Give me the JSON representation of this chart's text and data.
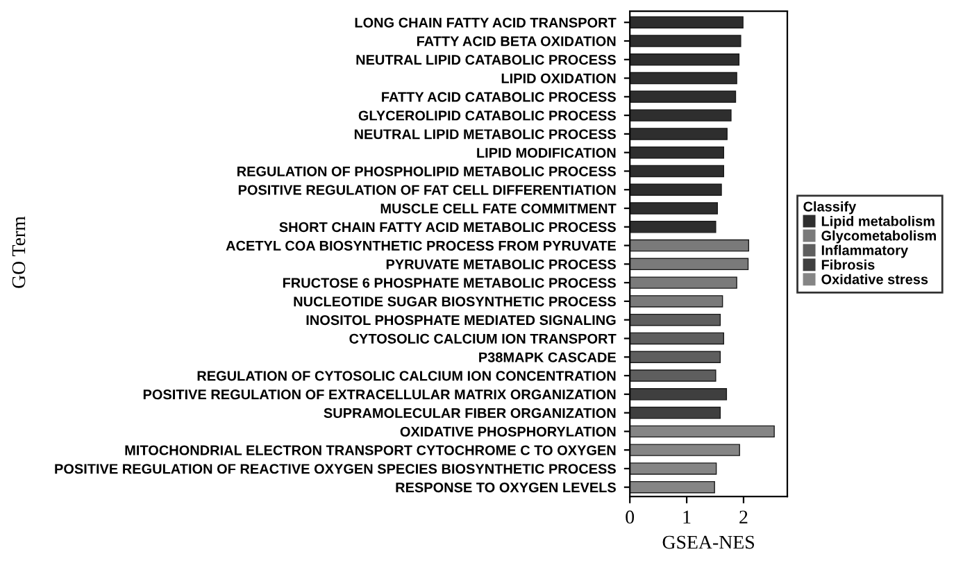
{
  "chart_data": {
    "type": "bar",
    "orientation": "horizontal",
    "xlabel": "GSEA-NES",
    "ylabel": "GO Term",
    "legend_title": "Classify",
    "legend": "right",
    "grid": false,
    "categories": [
      "LONG CHAIN FATTY ACID TRANSPORT",
      "FATTY ACID BETA OXIDATION",
      "NEUTRAL LIPID CATABOLIC PROCESS",
      "LIPID OXIDATION",
      "FATTY ACID CATABOLIC PROCESS",
      "GLYCEROLIPID CATABOLIC PROCESS",
      "NEUTRAL LIPID METABOLIC PROCESS",
      "LIPID MODIFICATION",
      "REGULATION OF PHOSPHOLIPID METABOLIC PROCESS",
      "POSITIVE REGULATION OF FAT CELL DIFFERENTIATION",
      "MUSCLE CELL FATE COMMITMENT",
      "SHORT CHAIN FATTY ACID METABOLIC PROCESS",
      "ACETYL COA BIOSYNTHETIC PROCESS FROM PYRUVATE",
      "PYRUVATE METABOLIC PROCESS",
      "FRUCTOSE 6 PHOSPHATE METABOLIC PROCESS",
      "NUCLEOTIDE SUGAR BIOSYNTHETIC PROCESS",
      "INOSITOL PHOSPHATE MEDIATED SIGNALING",
      "CYTOSOLIC CALCIUM ION TRANSPORT",
      "P38MAPK CASCADE",
      "REGULATION OF CYTOSOLIC CALCIUM ION CONCENTRATION",
      "POSITIVE REGULATION OF EXTRACELLULAR MATRIX ORGANIZATION",
      "SUPRAMOLECULAR FIBER ORGANIZATION",
      "OXIDATIVE PHOSPHORYLATION",
      "MITOCHONDRIAL ELECTRON TRANSPORT CYTOCHROME C TO OXYGEN",
      "POSITIVE REGULATION OF REACTIVE OXYGEN SPECIES BIOSYNTHETIC PROCESS",
      "RESPONSE TO OXYGEN LEVELS"
    ],
    "series": [
      {
        "name": "Lipid metabolism",
        "color": "#2e2e2e",
        "values": [
          1.99,
          1.95,
          1.92,
          1.88,
          1.86,
          1.78,
          1.71,
          1.65,
          1.65,
          1.61,
          1.54,
          1.51,
          null,
          null,
          null,
          null,
          null,
          null,
          null,
          null,
          null,
          null,
          null,
          null,
          null,
          null
        ]
      },
      {
        "name": "Glycometabolism",
        "color": "#7a7a7a",
        "values": [
          null,
          null,
          null,
          null,
          null,
          null,
          null,
          null,
          null,
          null,
          null,
          null,
          2.09,
          2.08,
          1.88,
          1.63,
          null,
          null,
          null,
          null,
          null,
          null,
          null,
          null,
          null,
          null
        ]
      },
      {
        "name": "Inflammatory",
        "color": "#5e5e5e",
        "values": [
          null,
          null,
          null,
          null,
          null,
          null,
          null,
          null,
          null,
          null,
          null,
          null,
          null,
          null,
          null,
          null,
          1.59,
          1.65,
          1.59,
          1.51,
          null,
          null,
          null,
          null,
          null,
          null
        ]
      },
      {
        "name": "Fibrosis",
        "color": "#3f3f3f",
        "values": [
          null,
          null,
          null,
          null,
          null,
          null,
          null,
          null,
          null,
          null,
          null,
          null,
          null,
          null,
          null,
          null,
          null,
          null,
          null,
          null,
          1.7,
          1.59,
          null,
          null,
          null,
          null
        ]
      },
      {
        "name": "Oxidative stress",
        "color": "#858585",
        "values": [
          null,
          null,
          null,
          null,
          null,
          null,
          null,
          null,
          null,
          null,
          null,
          null,
          null,
          null,
          null,
          null,
          null,
          null,
          null,
          null,
          null,
          null,
          2.54,
          1.93,
          1.52,
          1.49
        ]
      }
    ],
    "xlim": [
      0,
      2.77
    ],
    "xticks": [
      0,
      1,
      2
    ]
  }
}
